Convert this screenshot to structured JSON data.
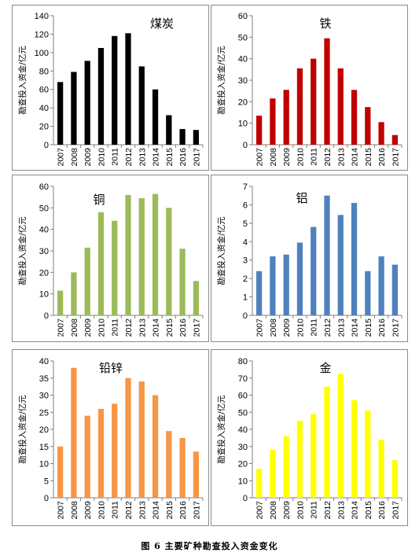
{
  "caption": "图 6  主要矿种勘查投入资金变化",
  "chart_data": [
    {
      "type": "bar",
      "title": "煤炭",
      "ylabel": "勘查投入资金/亿元",
      "categories": [
        "2007",
        "2008",
        "2009",
        "2010",
        "2011",
        "2012",
        "2013",
        "2014",
        "2015",
        "2016",
        "2017"
      ],
      "values": [
        68,
        79,
        91,
        105,
        118,
        121,
        85,
        60,
        32,
        17,
        16
      ],
      "ylim": [
        0,
        140
      ],
      "ytick_step": 20,
      "color": "#000000"
    },
    {
      "type": "bar",
      "title": "铁",
      "ylabel": "勘查投入资金/亿元",
      "categories": [
        "2007",
        "2008",
        "2009",
        "2010",
        "2011",
        "2012",
        "2013",
        "2014",
        "2015",
        "2016",
        "2017"
      ],
      "values": [
        13.5,
        21.5,
        25.5,
        35.5,
        40,
        49.5,
        35.5,
        25.5,
        17.5,
        10.5,
        4.5
      ],
      "ylim": [
        0,
        60
      ],
      "ytick_step": 10,
      "color": "#c00000"
    },
    {
      "type": "bar",
      "title": "铜",
      "ylabel": "勘查投入资金/亿元",
      "categories": [
        "2007",
        "2008",
        "2009",
        "2010",
        "2011",
        "2012",
        "2013",
        "2014",
        "2015",
        "2016",
        "2017"
      ],
      "values": [
        11.5,
        20,
        31.5,
        48,
        44,
        56,
        54.5,
        56.5,
        50,
        31,
        16
      ],
      "ylim": [
        0,
        60
      ],
      "ytick_step": 10,
      "color": "#9bbb59"
    },
    {
      "type": "bar",
      "title": "铝",
      "ylabel": "勘查投入资金/亿元",
      "categories": [
        "2007",
        "2008",
        "2009",
        "2010",
        "2011",
        "2012",
        "2013",
        "2014",
        "2015",
        "2016",
        "2017"
      ],
      "values": [
        2.4,
        3.2,
        3.3,
        3.95,
        4.8,
        6.5,
        5.45,
        6.1,
        2.4,
        3.2,
        2.75
      ],
      "ylim": [
        0,
        7
      ],
      "ytick_step": 1,
      "color": "#4f81bd"
    },
    {
      "type": "bar",
      "title": "铅锌",
      "ylabel": "勘查投入资金/亿元",
      "categories": [
        "2007",
        "2008",
        "2009",
        "2010",
        "2011",
        "2012",
        "2013",
        "2014",
        "2015",
        "2016",
        "2017"
      ],
      "values": [
        15,
        38,
        24,
        26,
        27.5,
        35,
        34,
        30,
        19.5,
        17.5,
        13.5
      ],
      "ylim": [
        0,
        40
      ],
      "ytick_step": 5,
      "color": "#f79646"
    },
    {
      "type": "bar",
      "title": "金",
      "ylabel": "勘查投入资金/亿元",
      "categories": [
        "2007",
        "2008",
        "2009",
        "2010",
        "2011",
        "2012",
        "2013",
        "2014",
        "2015",
        "2016",
        "2017"
      ],
      "values": [
        17,
        28,
        36,
        45,
        49,
        65,
        72.5,
        57,
        51,
        34,
        22
      ],
      "ylim": [
        0,
        80
      ],
      "ytick_step": 10,
      "color": "#ffff00"
    }
  ]
}
